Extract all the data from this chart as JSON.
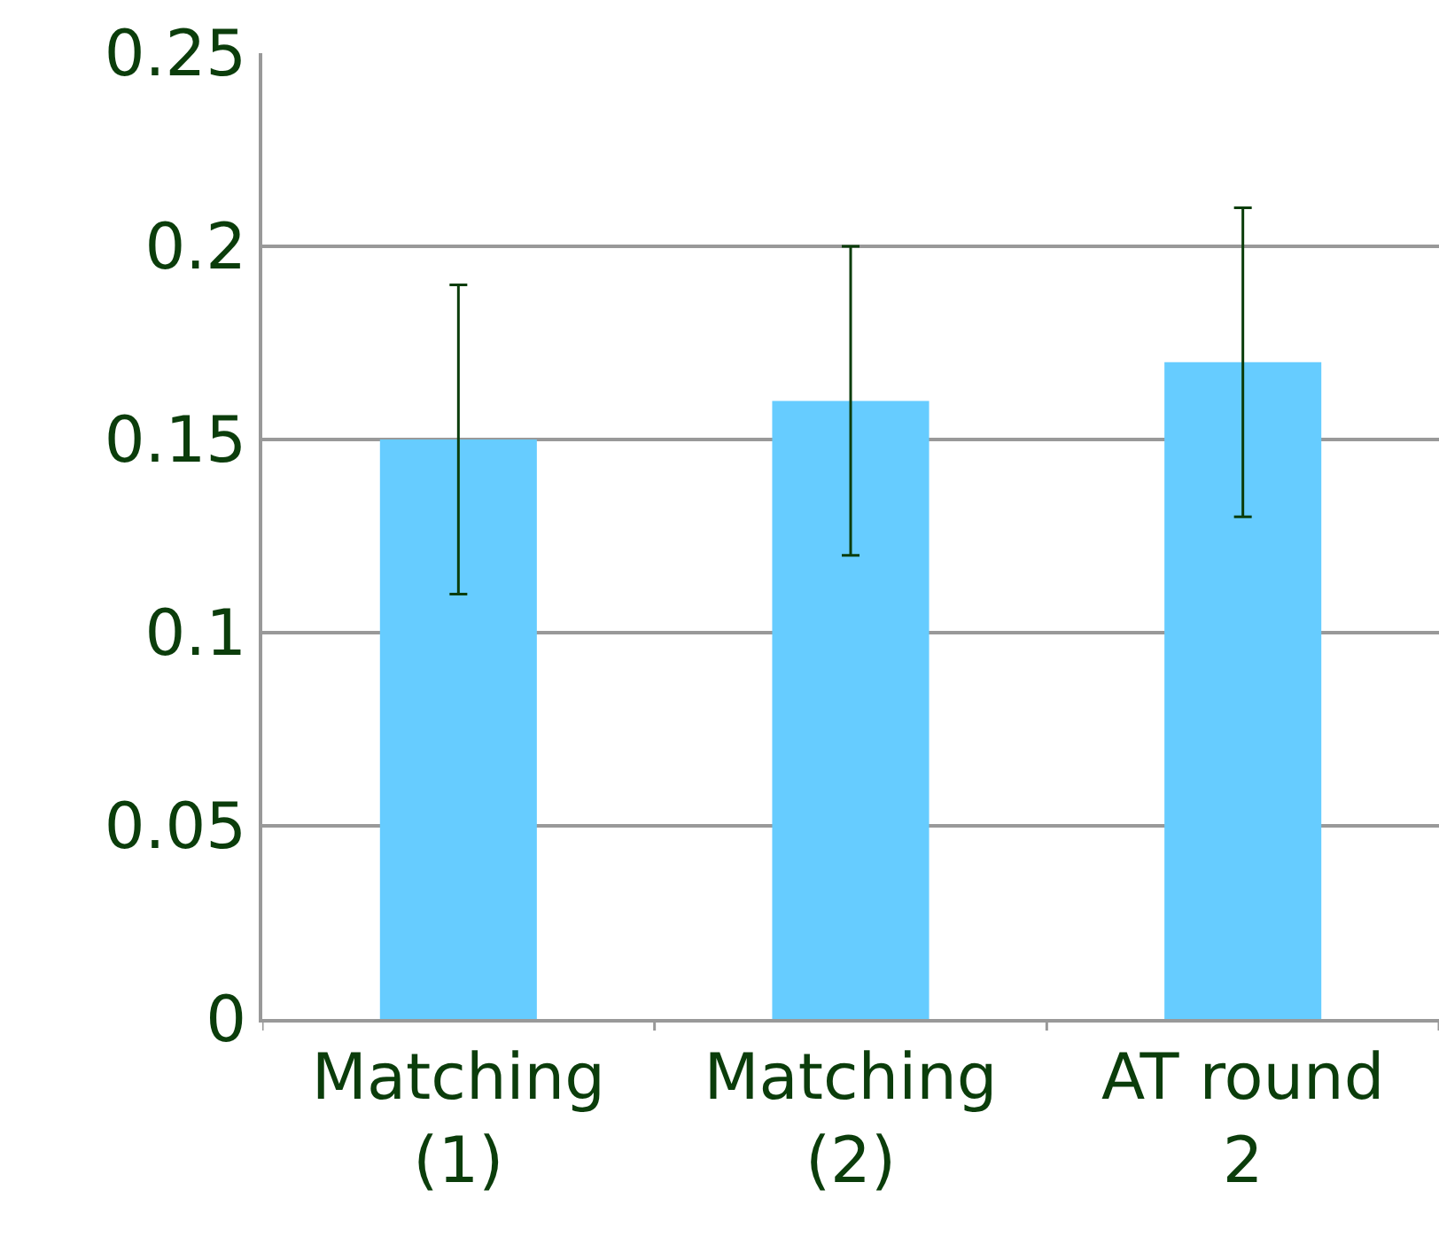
{
  "chart_data": {
    "type": "bar",
    "categories": [
      "Matching (1)",
      "Matching (2)",
      "AT round 2"
    ],
    "values": [
      0.15,
      0.16,
      0.17
    ],
    "errors": [
      0.04,
      0.04,
      0.04
    ],
    "color": "#66ccff",
    "ylim": [
      0,
      0.25
    ],
    "yticks": [
      {
        "value": 0,
        "label": "0"
      },
      0.05,
      0.1,
      0.15,
      0.2,
      0.25
    ],
    "grid": "y"
  }
}
